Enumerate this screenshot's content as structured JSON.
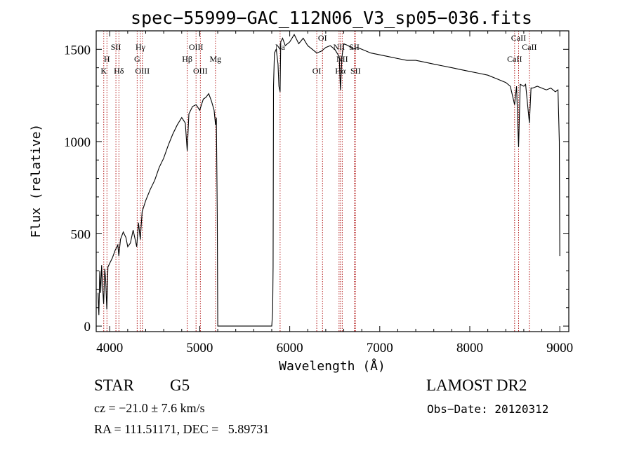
{
  "chart_data": {
    "type": "line",
    "title": "spec−55999−GAC_112N06_V3_sp05−036.fits",
    "xlabel": "Wavelength (Å)",
    "ylabel": "Flux (relative)",
    "xlim": [
      3850,
      9100
    ],
    "ylim": [
      -30,
      1600
    ],
    "x_ticks": [
      4000,
      5000,
      6000,
      7000,
      8000,
      9000
    ],
    "y_ticks": [
      0,
      500,
      1000,
      1500
    ],
    "x_tick_labels": [
      "4000",
      "5000",
      "6000",
      "7000",
      "8000",
      "9000"
    ],
    "y_tick_labels": [
      "0",
      "500",
      "1000",
      "1500"
    ],
    "grid": false,
    "legend": "none",
    "line_color": "#000000",
    "marker_color": "#aa0000",
    "series": [
      {
        "points": [
          [
            3870,
            180
          ],
          [
            3880,
            60
          ],
          [
            3890,
            300
          ],
          [
            3900,
            180
          ],
          [
            3910,
            330
          ],
          [
            3920,
            220
          ],
          [
            3933,
            120
          ],
          [
            3945,
            310
          ],
          [
            3955,
            250
          ],
          [
            3968,
            90
          ],
          [
            3980,
            320
          ],
          [
            4000,
            340
          ],
          [
            4030,
            370
          ],
          [
            4060,
            410
          ],
          [
            4090,
            440
          ],
          [
            4101,
            380
          ],
          [
            4120,
            470
          ],
          [
            4150,
            510
          ],
          [
            4180,
            480
          ],
          [
            4200,
            430
          ],
          [
            4230,
            450
          ],
          [
            4260,
            520
          ],
          [
            4300,
            430
          ],
          [
            4320,
            560
          ],
          [
            4340,
            470
          ],
          [
            4360,
            620
          ],
          [
            4400,
            680
          ],
          [
            4450,
            740
          ],
          [
            4500,
            790
          ],
          [
            4550,
            860
          ],
          [
            4600,
            910
          ],
          [
            4650,
            980
          ],
          [
            4700,
            1040
          ],
          [
            4750,
            1090
          ],
          [
            4800,
            1130
          ],
          [
            4840,
            1100
          ],
          [
            4861,
            950
          ],
          [
            4880,
            1150
          ],
          [
            4920,
            1190
          ],
          [
            4960,
            1200
          ],
          [
            5000,
            1170
          ],
          [
            5040,
            1230
          ],
          [
            5070,
            1240
          ],
          [
            5100,
            1260
          ],
          [
            5130,
            1220
          ],
          [
            5160,
            1170
          ],
          [
            5175,
            1090
          ],
          [
            5185,
            1130
          ],
          [
            5195,
            600
          ],
          [
            5200,
            0
          ],
          [
            5800,
            0
          ],
          [
            5810,
            80
          ],
          [
            5815,
            320
          ],
          [
            5820,
            1300
          ],
          [
            5830,
            1480
          ],
          [
            5850,
            1500
          ],
          [
            5870,
            1420
          ],
          [
            5880,
            1300
          ],
          [
            5893,
            1270
          ],
          [
            5900,
            1540
          ],
          [
            5920,
            1560
          ],
          [
            5950,
            1520
          ],
          [
            6000,
            1540
          ],
          [
            6050,
            1580
          ],
          [
            6100,
            1530
          ],
          [
            6150,
            1560
          ],
          [
            6200,
            1520
          ],
          [
            6250,
            1500
          ],
          [
            6300,
            1480
          ],
          [
            6350,
            1490
          ],
          [
            6400,
            1510
          ],
          [
            6450,
            1520
          ],
          [
            6500,
            1500
          ],
          [
            6550,
            1460
          ],
          [
            6563,
            1280
          ],
          [
            6580,
            1460
          ],
          [
            6600,
            1530
          ],
          [
            6650,
            1520
          ],
          [
            6700,
            1500
          ],
          [
            6750,
            1510
          ],
          [
            6800,
            1500
          ],
          [
            6900,
            1480
          ],
          [
            7000,
            1470
          ],
          [
            7100,
            1460
          ],
          [
            7200,
            1450
          ],
          [
            7300,
            1440
          ],
          [
            7400,
            1440
          ],
          [
            7500,
            1430
          ],
          [
            7600,
            1420
          ],
          [
            7700,
            1410
          ],
          [
            7800,
            1400
          ],
          [
            7900,
            1390
          ],
          [
            8000,
            1380
          ],
          [
            8100,
            1370
          ],
          [
            8200,
            1360
          ],
          [
            8300,
            1340
          ],
          [
            8400,
            1320
          ],
          [
            8450,
            1300
          ],
          [
            8498,
            1200
          ],
          [
            8520,
            1300
          ],
          [
            8542,
            970
          ],
          [
            8560,
            1310
          ],
          [
            8600,
            1300
          ],
          [
            8620,
            1310
          ],
          [
            8662,
            1100
          ],
          [
            8680,
            1290
          ],
          [
            8700,
            1290
          ],
          [
            8750,
            1300
          ],
          [
            8800,
            1290
          ],
          [
            8850,
            1280
          ],
          [
            8900,
            1290
          ],
          [
            8950,
            1270
          ],
          [
            8980,
            1280
          ],
          [
            8995,
            1000
          ],
          [
            9000,
            380
          ]
        ]
      }
    ],
    "line_markers": [
      {
        "label": "K",
        "x": 3934,
        "row": 3
      },
      {
        "label": "H",
        "x": 3969,
        "row": 2
      },
      {
        "label": "SII",
        "x": 4069,
        "row": 1
      },
      {
        "label": "Hδ",
        "x": 4102,
        "row": 3
      },
      {
        "label": "Hγ",
        "x": 4341,
        "row": 1
      },
      {
        "label": "G",
        "x": 4305,
        "row": 2
      },
      {
        "label": "OIII",
        "x": 4363,
        "row": 3
      },
      {
        "label": "OIII",
        "x": 4959,
        "row": 1
      },
      {
        "label": "Hβ",
        "x": 4861,
        "row": 2
      },
      {
        "label": "OIII",
        "x": 5007,
        "row": 3
      },
      {
        "label": "Mg",
        "x": 5175,
        "row": 2
      },
      {
        "label": "Na",
        "x": 5893,
        "row": 1
      },
      {
        "label": "OI",
        "x": 6300,
        "row": 3
      },
      {
        "label": "OI",
        "x": 6364,
        "row": 0
      },
      {
        "label": "NII",
        "x": 6548,
        "row": 1
      },
      {
        "label": "Hα",
        "x": 6563,
        "row": 3
      },
      {
        "label": "NII",
        "x": 6583,
        "row": 2
      },
      {
        "label": "SII",
        "x": 6717,
        "row": 1
      },
      {
        "label": "SII",
        "x": 6731,
        "row": 3
      },
      {
        "label": "CaII",
        "x": 8498,
        "row": 2
      },
      {
        "label": "CaII",
        "x": 8542,
        "row": 0
      },
      {
        "label": "CaII",
        "x": 8662,
        "row": 1
      }
    ]
  },
  "info": {
    "object_class": "STAR",
    "subclass": "G5",
    "survey": "LAMOST DR2",
    "cz": "cz = −21.0 ± 7.6 km/s",
    "obs_date": "Obs−Date: 20120312",
    "coords": "RA = 111.51171, DEC =   5.89731"
  }
}
